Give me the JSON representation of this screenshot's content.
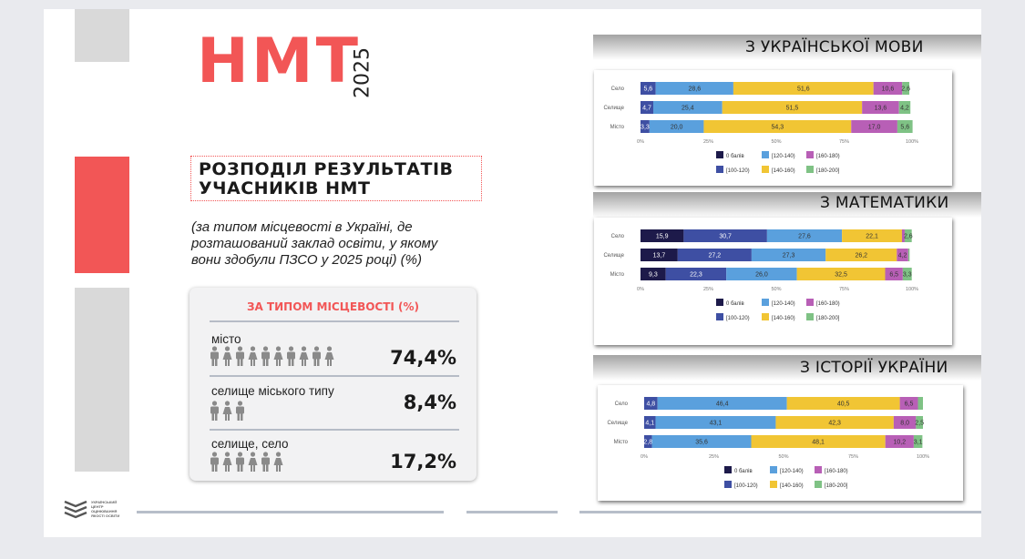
{
  "logo": {
    "main": "НМТ",
    "year": "2025"
  },
  "title": {
    "line1": "РОЗПОДІЛ РЕЗУЛЬТАТІВ",
    "line2": "УЧАСНИКІВ НМТ"
  },
  "subtitle": [
    "(за типом місцевості в Україні, де",
    "розташований заклад освіти, у якому",
    "вони здобули ПЗСО у 2025 році)  (%)"
  ],
  "card": {
    "title": "ЗА ТИПОМ МІСЦЕВОСТІ (%)",
    "rows": [
      {
        "label": "місто",
        "value": "74,4%",
        "icons": 10
      },
      {
        "label": "селище міського типу",
        "value": "8,4%",
        "icons": 3
      },
      {
        "label": "селище, село",
        "value": "17,2%",
        "icons": 6
      }
    ]
  },
  "footer_logo": {
    "lines": [
      "УКРАЇНСЬКИЙ",
      "ЦЕНТР",
      "ОЦІНЮВАННЯ",
      "ЯКОСТІ ОСВІТИ"
    ]
  },
  "colors": {
    "accent": "#f25656"
  },
  "legend": [
    "0 балів",
    "[100-120)",
    "[120-140)",
    "[140-160)",
    "[160-180)",
    "[180-200]"
  ],
  "legend_colors": [
    "#1d1a4a",
    "#3e4fa3",
    "#5aa0dd",
    "#f1c534",
    "#b85fb6",
    "#7fc285"
  ],
  "chart_data": [
    {
      "type": "bar",
      "orientation": "horizontal",
      "stacked": true,
      "title": "З УКРАЇНСЬКОЇ МОВИ",
      "categories": [
        "Село",
        "Селище",
        "Місто"
      ],
      "series": [
        {
          "name": "0 балів",
          "values": [
            0,
            0,
            0
          ]
        },
        {
          "name": "[100-120)",
          "values": [
            5.6,
            4.7,
            3.3
          ]
        },
        {
          "name": "[120-140)",
          "values": [
            28.6,
            25.4,
            20.0
          ]
        },
        {
          "name": "[140-160)",
          "values": [
            51.6,
            51.5,
            54.3
          ]
        },
        {
          "name": "[160-180)",
          "values": [
            10.6,
            13.6,
            17.0
          ]
        },
        {
          "name": "[180-200]",
          "values": [
            2.6,
            4.2,
            5.6
          ]
        }
      ],
      "labels": [
        [
          "",
          "5,6",
          "28,6",
          "51,6",
          "10,6",
          "2,6"
        ],
        [
          "",
          "4,7",
          "25,4",
          "51,5",
          "13,6",
          "4,2"
        ],
        [
          "",
          "3,3",
          "20,0",
          "54,3",
          "17,0",
          "5,6"
        ]
      ],
      "xticks": [
        "0%",
        "25%",
        "50%",
        "75%",
        "100%"
      ],
      "xlim": [
        0,
        100
      ]
    },
    {
      "type": "bar",
      "orientation": "horizontal",
      "stacked": true,
      "title": "З МАТЕМАТИКИ",
      "categories": [
        "Село",
        "Селище",
        "Місто"
      ],
      "series": [
        {
          "name": "0 балів",
          "values": [
            15.9,
            13.7,
            9.3
          ]
        },
        {
          "name": "[100-120)",
          "values": [
            30.7,
            27.2,
            22.3
          ]
        },
        {
          "name": "[120-140)",
          "values": [
            27.6,
            27.3,
            26.0
          ]
        },
        {
          "name": "[140-160)",
          "values": [
            22.1,
            26.2,
            32.5
          ]
        },
        {
          "name": "[160-180)",
          "values": [
            1.0,
            4.2,
            6.5
          ]
        },
        {
          "name": "[180-200]",
          "values": [
            2.6,
            0.5,
            3.3
          ]
        }
      ],
      "labels": [
        [
          "15,9",
          "30,7",
          "27,6",
          "22,1",
          "",
          "2,6"
        ],
        [
          "13,7",
          "27,2",
          "27,3",
          "26,2",
          "4,2",
          ""
        ],
        [
          "9,3",
          "22,3",
          "26,0",
          "32,5",
          "6,5",
          "3,3"
        ]
      ],
      "xticks": [
        "0%",
        "25%",
        "50%",
        "75%",
        "100%"
      ],
      "xlim": [
        0,
        100
      ]
    },
    {
      "type": "bar",
      "orientation": "horizontal",
      "stacked": true,
      "title": "З ІСТОРІЇ УКРАЇНИ",
      "categories": [
        "Село",
        "Селище",
        "Місто"
      ],
      "series": [
        {
          "name": "0 балів",
          "values": [
            0,
            0,
            0
          ]
        },
        {
          "name": "[100-120)",
          "values": [
            4.8,
            4.1,
            2.8
          ]
        },
        {
          "name": "[120-140)",
          "values": [
            46.4,
            43.1,
            35.6
          ]
        },
        {
          "name": "[140-160)",
          "values": [
            40.5,
            42.3,
            48.1
          ]
        },
        {
          "name": "[160-180)",
          "values": [
            6.5,
            8.0,
            10.2
          ]
        },
        {
          "name": "[180-200]",
          "values": [
            1.8,
            2.5,
            3.1
          ]
        }
      ],
      "labels": [
        [
          "",
          "4,8",
          "46,4",
          "40,5",
          "6,5",
          ""
        ],
        [
          "",
          "4,1",
          "43,1",
          "42,3",
          "8,0",
          "2,5"
        ],
        [
          "",
          "2,8",
          "35,6",
          "48,1",
          "10,2",
          "3,1"
        ]
      ],
      "xticks": [
        "0%",
        "25%",
        "50%",
        "75%",
        "100%"
      ],
      "xlim": [
        0,
        100
      ]
    }
  ]
}
